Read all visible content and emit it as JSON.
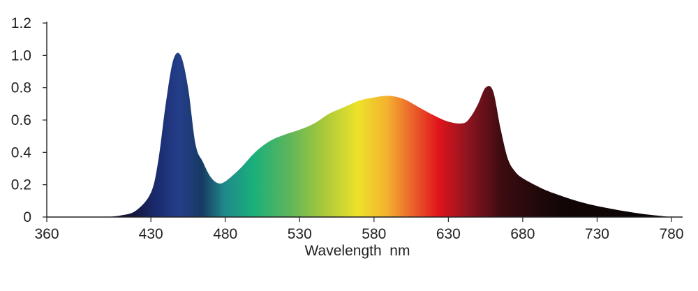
{
  "chart_data": {
    "type": "area",
    "title": "",
    "xlabel": "Wavelength  nm",
    "ylabel": "",
    "xlim": [
      360,
      780
    ],
    "ylim": [
      0,
      1.2
    ],
    "grid": false,
    "x_ticks": [
      "360",
      "430",
      "480",
      "530",
      "580",
      "630",
      "680",
      "730",
      "780"
    ],
    "y_ticks": [
      "0",
      "0.2",
      "0.4",
      "0.6",
      "0.8",
      "1.0",
      "1.2"
    ],
    "fill": "visible-spectrum gradient",
    "series": [
      {
        "x": [
          400,
          410,
          420,
          430,
          435,
          440,
          445,
          450,
          455,
          460,
          465,
          470,
          475,
          480,
          490,
          500,
          510,
          520,
          530,
          540,
          550,
          560,
          570,
          580,
          590,
          600,
          610,
          620,
          630,
          640,
          645,
          650,
          655,
          660,
          665,
          670,
          675,
          680,
          690,
          700,
          720,
          740,
          760,
          780
        ],
        "y": [
          0.0,
          0.01,
          0.04,
          0.15,
          0.35,
          0.7,
          0.97,
          1.0,
          0.8,
          0.45,
          0.34,
          0.25,
          0.21,
          0.22,
          0.3,
          0.4,
          0.47,
          0.51,
          0.54,
          0.58,
          0.64,
          0.68,
          0.72,
          0.74,
          0.75,
          0.73,
          0.68,
          0.63,
          0.59,
          0.58,
          0.62,
          0.7,
          0.8,
          0.78,
          0.55,
          0.36,
          0.28,
          0.24,
          0.19,
          0.15,
          0.09,
          0.05,
          0.02,
          0.0
        ]
      }
    ]
  }
}
